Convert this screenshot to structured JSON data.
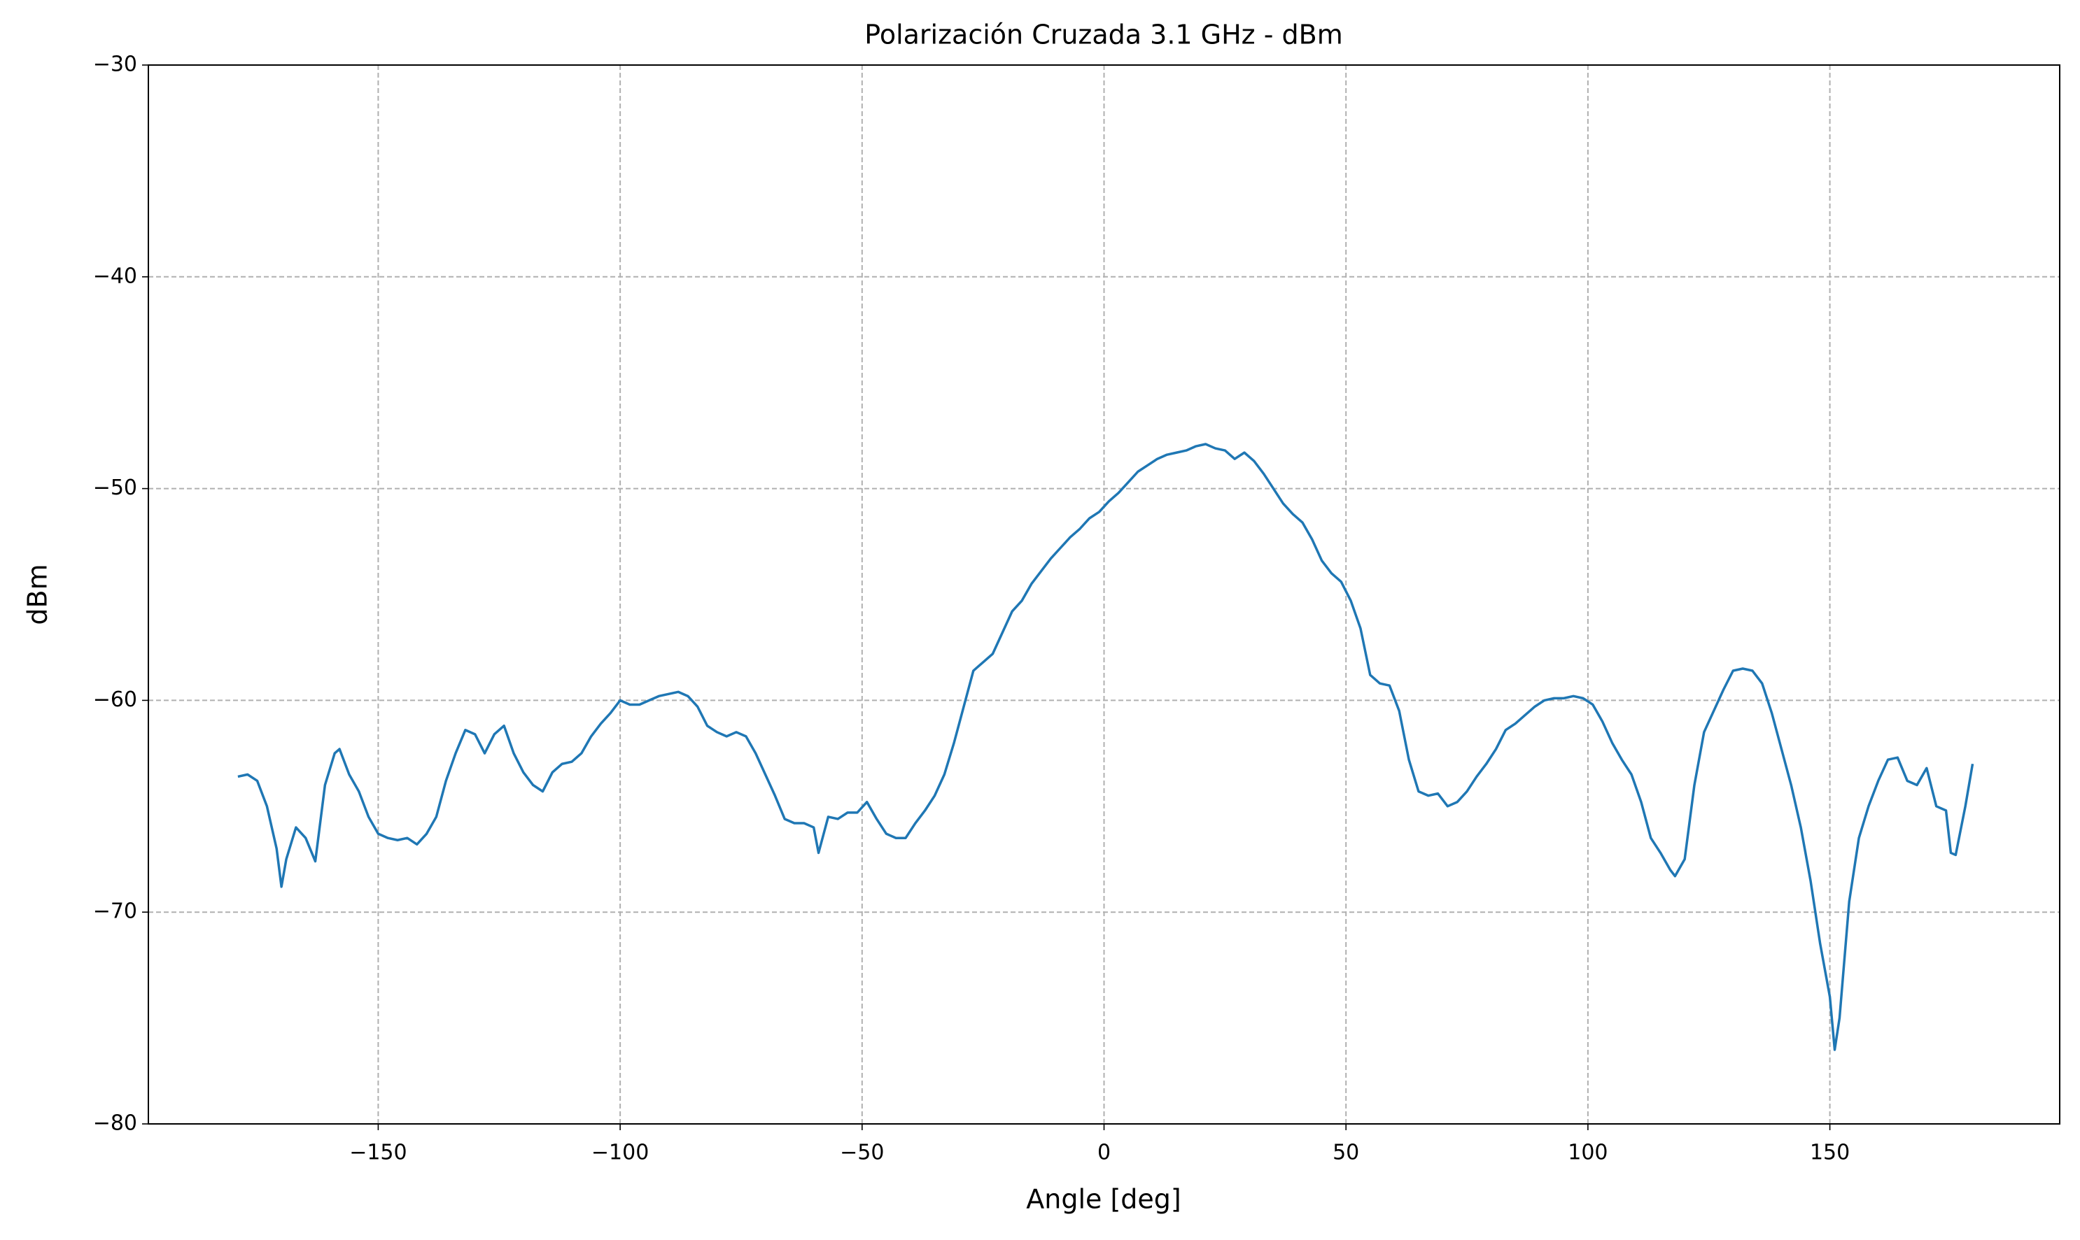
{
  "chart_data": {
    "type": "line",
    "title": "Polarización Cruzada 3.1 GHz - dBm",
    "x_label": "Angle [deg]",
    "y_label": "dBm",
    "color": "#1f77b4",
    "grid": true,
    "xlim": [
      -197.5,
      197.5
    ],
    "ylim": [
      -80,
      -30
    ],
    "xticks": [
      {
        "value": -150,
        "label": "−150"
      },
      {
        "value": -100,
        "label": "−100"
      },
      {
        "value": -50,
        "label": "−50"
      },
      0,
      50,
      100,
      150
    ],
    "yticks": [
      {
        "value": -80,
        "label": "−80"
      },
      {
        "value": -70,
        "label": "−70"
      },
      {
        "value": -60,
        "label": "−60"
      },
      {
        "value": -50,
        "label": "−50"
      },
      {
        "value": -40,
        "label": "−40"
      },
      {
        "value": -30,
        "label": "−30"
      }
    ],
    "x": [
      -179,
      -177,
      -175,
      -173,
      -171,
      -170,
      -169,
      -167,
      -165,
      -163,
      -161,
      -159,
      -158,
      -156,
      -154,
      -152,
      -150,
      -148,
      -146,
      -144,
      -142,
      -140,
      -138,
      -136,
      -134,
      -132,
      -130,
      -128,
      -126,
      -124,
      -122,
      -120,
      -118,
      -116,
      -114,
      -112,
      -110,
      -108,
      -106,
      -104,
      -102,
      -100,
      -98,
      -96,
      -94,
      -92,
      -90,
      -88,
      -86,
      -84,
      -82,
      -80,
      -78,
      -76,
      -74,
      -72,
      -70,
      -68,
      -66,
      -64,
      -62,
      -60,
      -59,
      -57,
      -55,
      -53,
      -51,
      -49,
      -47,
      -45,
      -43,
      -41,
      -39,
      -37,
      -35,
      -33,
      -31,
      -29,
      -27,
      -25,
      -23,
      -21,
      -19,
      -17,
      -15,
      -13,
      -11,
      -9,
      -7,
      -5,
      -3,
      -1,
      1,
      3,
      5,
      7,
      9,
      11,
      13,
      15,
      17,
      19,
      21,
      23,
      25,
      27,
      29,
      31,
      33,
      35,
      37,
      39,
      41,
      43,
      45,
      47,
      49,
      51,
      53,
      55,
      57,
      59,
      61,
      63,
      65,
      67,
      69,
      71,
      73,
      75,
      77,
      79,
      81,
      83,
      85,
      87,
      89,
      91,
      93,
      95,
      97,
      99,
      101,
      103,
      105,
      107,
      109,
      111,
      113,
      115,
      117,
      118,
      120,
      122,
      124,
      126,
      128,
      130,
      132,
      134,
      136,
      138,
      140,
      142,
      144,
      146,
      148,
      150,
      151,
      152,
      154,
      156,
      158,
      160,
      162,
      164,
      166,
      168,
      170,
      172,
      174,
      175,
      176,
      178,
      179.5
    ],
    "values": [
      -63.6,
      -63.5,
      -63.8,
      -65,
      -67,
      -68.8,
      -67.5,
      -66,
      -66.5,
      -67.6,
      -64,
      -62.5,
      -62.3,
      -63.5,
      -64.3,
      -65.5,
      -66.3,
      -66.5,
      -66.6,
      -66.5,
      -66.8,
      -66.3,
      -65.5,
      -63.8,
      -62.5,
      -61.4,
      -61.6,
      -62.5,
      -61.6,
      -61.2,
      -62.5,
      -63.4,
      -64,
      -64.3,
      -63.4,
      -63,
      -62.9,
      -62.5,
      -61.7,
      -61.1,
      -60.6,
      -60,
      -60.2,
      -60.2,
      -60,
      -59.8,
      -59.7,
      -59.6,
      -59.8,
      -60.3,
      -61.2,
      -61.5,
      -61.7,
      -61.5,
      -61.7,
      -62.5,
      -63.5,
      -64.5,
      -65.6,
      -65.8,
      -65.8,
      -66,
      -67.2,
      -65.5,
      -65.6,
      -65.3,
      -65.3,
      -64.8,
      -65.6,
      -66.3,
      -66.5,
      -66.5,
      -65.8,
      -65.2,
      -64.5,
      -63.5,
      -62,
      -60.3,
      -58.6,
      -58.2,
      -57.8,
      -56.8,
      -55.8,
      -55.3,
      -54.5,
      -53.9,
      -53.3,
      -52.8,
      -52.3,
      -51.9,
      -51.4,
      -51.1,
      -50.6,
      -50.2,
      -49.7,
      -49.2,
      -48.9,
      -48.6,
      -48.4,
      -48.3,
      -48.2,
      -48,
      -47.9,
      -48.1,
      -48.2,
      -48.6,
      -48.3,
      -48.7,
      -49.3,
      -50,
      -50.7,
      -51.2,
      -51.6,
      -52.4,
      -53.4,
      -54,
      -54.4,
      -55.3,
      -56.6,
      -58.8,
      -59.2,
      -59.3,
      -60.5,
      -62.8,
      -64.3,
      -64.5,
      -64.4,
      -65,
      -64.8,
      -64.3,
      -63.6,
      -63,
      -62.3,
      -61.4,
      -61.1,
      -60.7,
      -60.3,
      -60,
      -59.9,
      -59.9,
      -59.8,
      -59.9,
      -60.2,
      -61,
      -62,
      -62.8,
      -63.5,
      -64.8,
      -66.5,
      -67.2,
      -68,
      -68.3,
      -67.5,
      -64,
      -61.5,
      -60.5,
      -59.5,
      -58.6,
      -58.5,
      -58.6,
      -59.2,
      -60.6,
      -62.3,
      -64,
      -66,
      -68.5,
      -71.5,
      -74,
      -76.5,
      -75,
      -69.5,
      -66.5,
      -65,
      -63.8,
      -62.8,
      -62.7,
      -63.8,
      -64,
      -63.2,
      -65,
      -65.2,
      -67.2,
      -67.3,
      -65,
      -63
    ]
  }
}
